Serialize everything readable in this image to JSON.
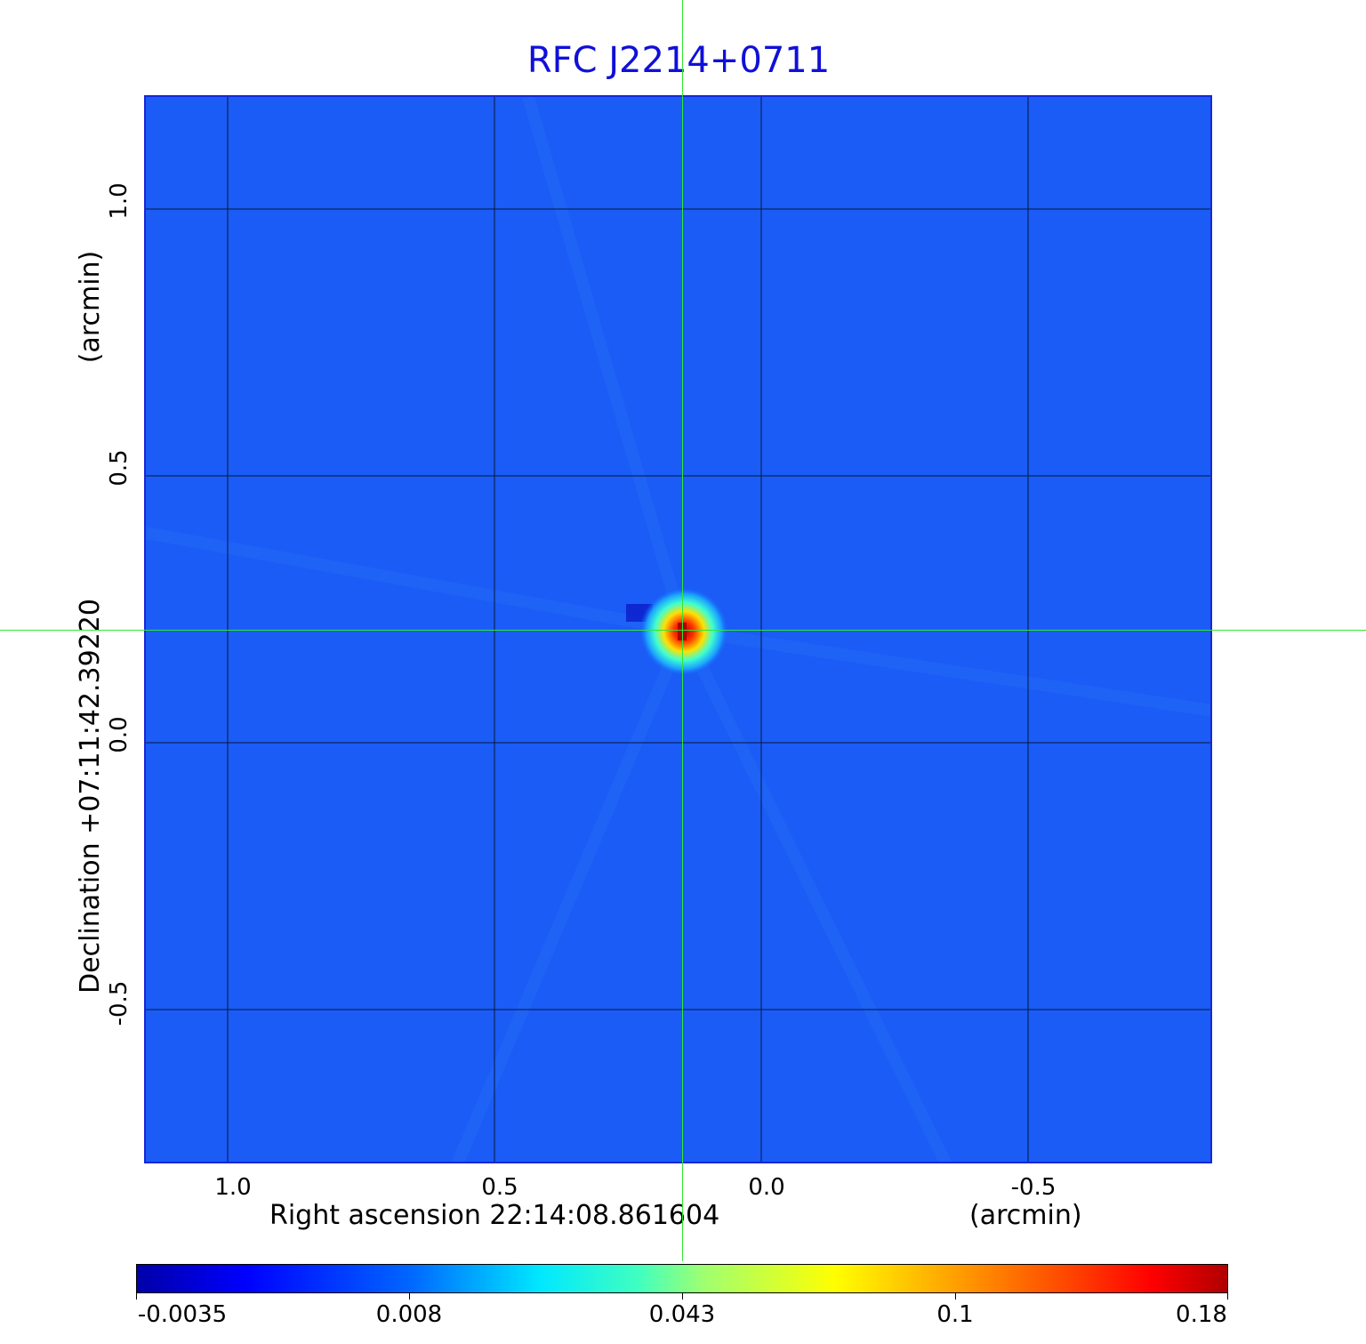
{
  "title": "RFC J2214+0711",
  "x_axis": {
    "label": "Right ascension  22:14:08.861604",
    "unit": "(arcmin)",
    "ticks": [
      "1.0",
      "0.5",
      "0.0",
      "-0.5"
    ]
  },
  "y_axis": {
    "label": "Declination  +07:11:42.39220",
    "unit": "(arcmin)",
    "ticks": [
      "1.0",
      "0.5",
      "0.0",
      "-0.5"
    ]
  },
  "colorbar": {
    "ticks": [
      "-0.0035",
      "0.008",
      "0.043",
      "0.1",
      "0.18"
    ]
  },
  "colors": {
    "background_map": "#1a5cf5",
    "title": "#1010d8",
    "crosshair": "#33e633"
  }
}
